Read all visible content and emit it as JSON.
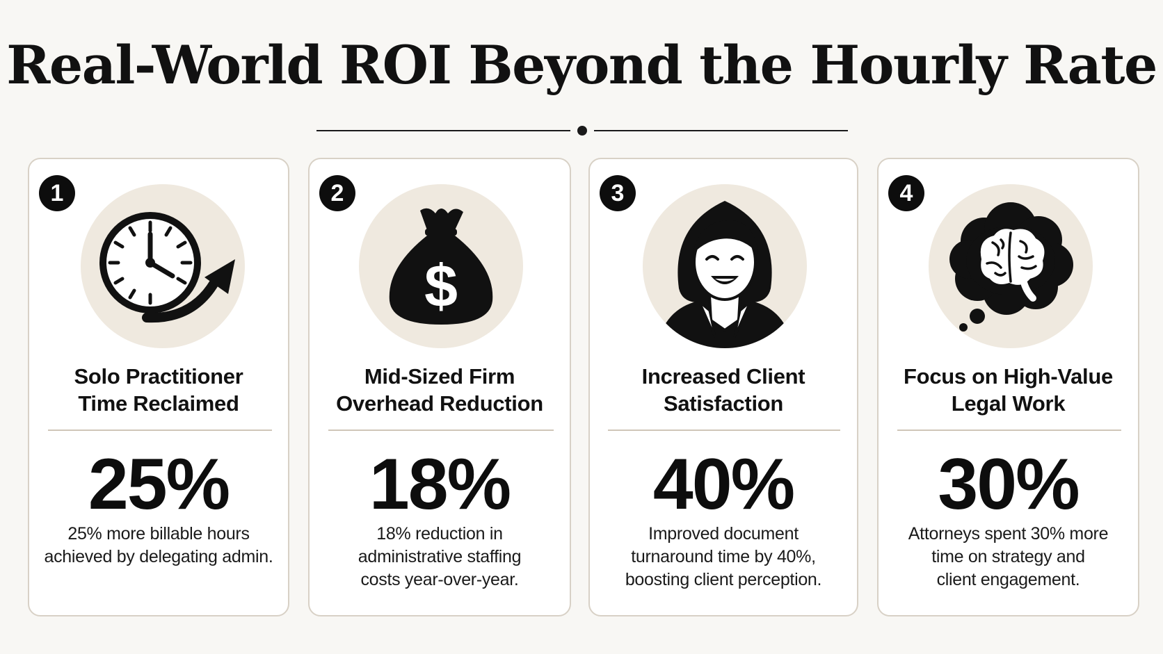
{
  "title": "Real-World ROI Beyond the Hourly Rate",
  "cards": [
    {
      "number": "1",
      "icon": "clock-arrow-icon",
      "title_line1": "Solo Practitioner",
      "title_line2": "Time Reclaimed",
      "stat": "25%",
      "desc_line1": "25% more billable hours",
      "desc_line2": "achieved by delegating admin.",
      "desc_line3": ""
    },
    {
      "number": "2",
      "icon": "money-bag-icon",
      "title_line1": "Mid-Sized Firm",
      "title_line2": "Overhead Reduction",
      "stat": "18%",
      "desc_line1": "18% reduction in",
      "desc_line2": "administrative staffing",
      "desc_line3": "costs year-over-year."
    },
    {
      "number": "3",
      "icon": "smiling-client-icon",
      "title_line1": "Increased Client",
      "title_line2": "Satisfaction",
      "stat": "40%",
      "desc_line1": "Improved document",
      "desc_line2": "turnaround time by 40%,",
      "desc_line3": "boosting client perception."
    },
    {
      "number": "4",
      "icon": "brain-thought-icon",
      "title_line1": "Focus on High-Value",
      "title_line2": "Legal Work",
      "stat": "30%",
      "desc_line1": "Attorneys spent 30% more",
      "desc_line2": "time on strategy and",
      "desc_line3": "client engagement."
    }
  ]
}
